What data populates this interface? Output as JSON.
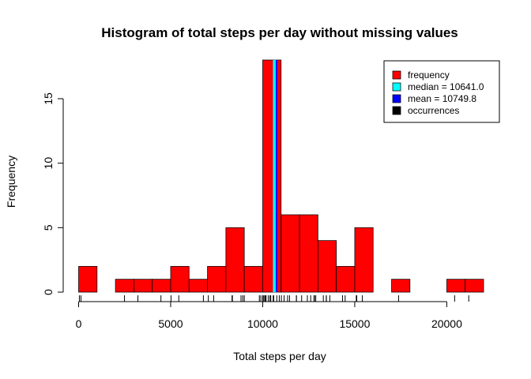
{
  "chart_data": {
    "type": "bar",
    "title": "Histogram of total steps per day without missing values",
    "xlabel": "Total steps per day",
    "ylabel": "Frequency",
    "xlim": [
      0,
      22000
    ],
    "ylim": [
      0,
      18
    ],
    "x_ticks": [
      0,
      5000,
      10000,
      15000,
      20000
    ],
    "x_tick_labels": [
      "0",
      "5000",
      "10000",
      "15000",
      "20000"
    ],
    "y_ticks": [
      0,
      5,
      10,
      15
    ],
    "y_tick_labels": [
      "0",
      "5",
      "10",
      "15"
    ],
    "bin_width": 1000,
    "bins": [
      {
        "start": 0,
        "count": 2
      },
      {
        "start": 1000,
        "count": 0
      },
      {
        "start": 2000,
        "count": 1
      },
      {
        "start": 3000,
        "count": 1
      },
      {
        "start": 4000,
        "count": 1
      },
      {
        "start": 5000,
        "count": 2
      },
      {
        "start": 6000,
        "count": 1
      },
      {
        "start": 7000,
        "count": 2
      },
      {
        "start": 8000,
        "count": 5
      },
      {
        "start": 9000,
        "count": 2
      },
      {
        "start": 10000,
        "count": 18
      },
      {
        "start": 11000,
        "count": 6
      },
      {
        "start": 12000,
        "count": 6
      },
      {
        "start": 13000,
        "count": 4
      },
      {
        "start": 14000,
        "count": 2
      },
      {
        "start": 15000,
        "count": 5
      },
      {
        "start": 16000,
        "count": 0
      },
      {
        "start": 17000,
        "count": 1
      },
      {
        "start": 18000,
        "count": 0
      },
      {
        "start": 19000,
        "count": 0
      },
      {
        "start": 20000,
        "count": 1
      },
      {
        "start": 21000,
        "count": 1
      }
    ],
    "median": 10641.0,
    "mean": 10749.8,
    "rug": [
      41,
      126,
      2492,
      3219,
      4472,
      5018,
      5441,
      6778,
      7047,
      7336,
      8334,
      8355,
      8821,
      8918,
      9000,
      9819,
      9900,
      10000,
      10056,
      10119,
      10139,
      10183,
      10304,
      10395,
      10439,
      10571,
      10600,
      10765,
      10900,
      11015,
      11162,
      11352,
      11458,
      11834,
      11829,
      12116,
      12426,
      12608,
      12787,
      12811,
      12883,
      13294,
      13452,
      13460,
      13646,
      14339,
      14478,
      15084,
      15098,
      15110,
      15414,
      17382,
      20427,
      21194
    ],
    "colors": {
      "bar_fill": "#ff0000",
      "bar_stroke": "#000000",
      "median": "#00ffff",
      "mean": "#0000ff",
      "rug": "#000000"
    },
    "legend": {
      "placement": "top-right",
      "items": [
        {
          "label": "frequency",
          "color": "#ff0000"
        },
        {
          "label": "median =  10641.0",
          "color": "#00ffff"
        },
        {
          "label": "mean =  10749.8",
          "color": "#0000ff"
        },
        {
          "label": "occurrences",
          "color": "#000000"
        }
      ]
    }
  }
}
